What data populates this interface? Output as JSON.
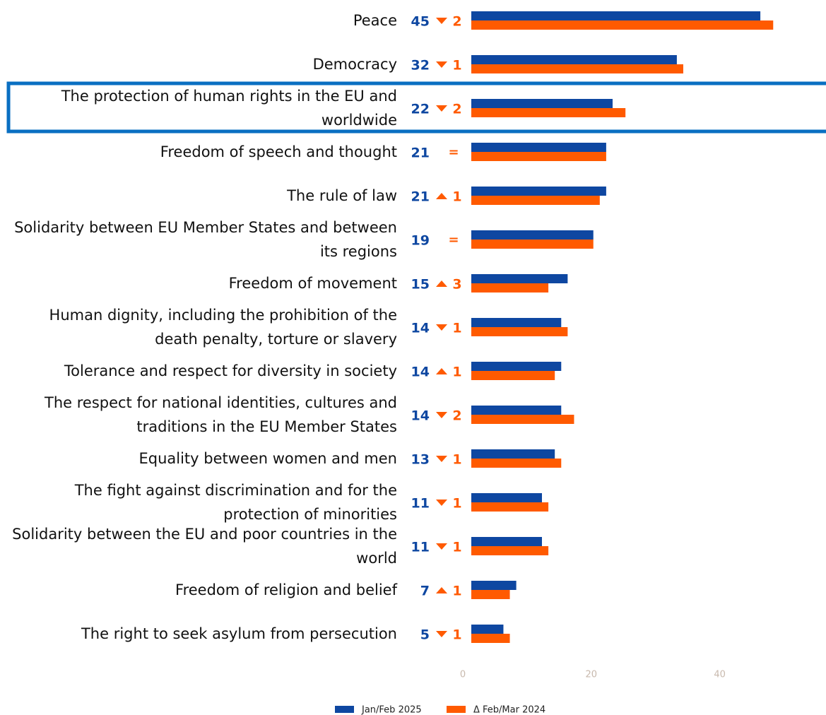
{
  "chart_data": {
    "type": "bar",
    "orientation": "horizontal",
    "categories": [
      "Peace",
      "Democracy",
      "The protection of human rights in the EU and worldwide",
      "Freedom of speech and thought",
      "The rule of law",
      "Solidarity between EU Member States and between its regions",
      "Freedom of movement",
      "Human dignity, including the prohibition of the death penalty, torture or slavery",
      "Tolerance and respect for diversity in society",
      "The respect for national identities, cultures and traditions in the EU Member States",
      "Equality between women and men",
      "The fight against discrimination and for the protection of minorities",
      "Solidarity between the EU and poor countries in the world",
      "Freedom of religion and belief",
      "The right to seek asylum from persecution"
    ],
    "series": [
      {
        "name": "Jan/Feb 2025",
        "color": "#0e47a1",
        "values": [
          45,
          32,
          22,
          21,
          21,
          19,
          15,
          14,
          14,
          14,
          13,
          11,
          11,
          7,
          5
        ]
      },
      {
        "name": "Δ Feb/Mar 2024",
        "color": "#ff5a00",
        "values": [
          47,
          33,
          24,
          21,
          20,
          19,
          12,
          15,
          13,
          16,
          14,
          12,
          12,
          6,
          6
        ]
      }
    ],
    "changes": [
      {
        "direction": "down",
        "value": 2
      },
      {
        "direction": "down",
        "value": 1
      },
      {
        "direction": "down",
        "value": 2
      },
      {
        "direction": "same",
        "label": "="
      },
      {
        "direction": "up",
        "value": 1
      },
      {
        "direction": "same",
        "label": "="
      },
      {
        "direction": "up",
        "value": 3
      },
      {
        "direction": "down",
        "value": 1
      },
      {
        "direction": "up",
        "value": 1
      },
      {
        "direction": "down",
        "value": 2
      },
      {
        "direction": "down",
        "value": 1
      },
      {
        "direction": "down",
        "value": 1
      },
      {
        "direction": "down",
        "value": 1
      },
      {
        "direction": "up",
        "value": 1
      },
      {
        "direction": "down",
        "value": 1
      }
    ],
    "xlim": [
      0,
      55
    ],
    "xticks": [
      0,
      20,
      40
    ],
    "grid": false,
    "highlight": 2,
    "legend": "bottom"
  }
}
